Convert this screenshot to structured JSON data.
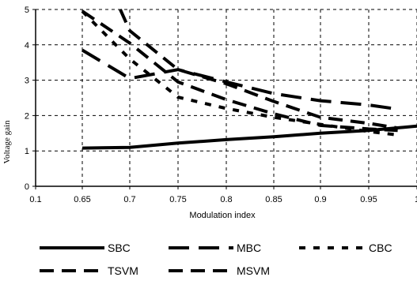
{
  "chart_data": {
    "type": "line",
    "xlabel": "Modulation index",
    "ylabel": "Voltage gain",
    "xlim": [
      0.1,
      1
    ],
    "ylim": [
      0,
      5
    ],
    "x_ticks": [
      "0.1",
      "0.65",
      "0.7",
      "0.75",
      "0.8",
      "0.85",
      "0.9",
      "0.95",
      "1"
    ],
    "y_ticks": [
      "0",
      "1",
      "2",
      "3",
      "4",
      "5"
    ],
    "grid": true,
    "legend_position": "bottom",
    "series": [
      {
        "name": "SBC",
        "style": "solid",
        "color": "#000000",
        "points": [
          [
            0.65,
            1.08
          ],
          [
            0.7,
            1.1
          ],
          [
            0.75,
            1.22
          ],
          [
            0.8,
            1.32
          ],
          [
            0.85,
            1.4
          ],
          [
            0.9,
            1.5
          ],
          [
            0.95,
            1.58
          ],
          [
            1.0,
            1.7
          ]
        ]
      },
      {
        "name": "MBC",
        "style": "long-dash",
        "color": "#000000",
        "points": [
          [
            0.65,
            3.85
          ],
          [
            0.7,
            3.05
          ],
          [
            0.75,
            3.3
          ],
          [
            0.8,
            2.95
          ],
          [
            0.85,
            2.62
          ],
          [
            0.9,
            2.42
          ],
          [
            0.95,
            2.3
          ],
          [
            0.98,
            2.18
          ]
        ]
      },
      {
        "name": "CBC",
        "style": "short-dash",
        "color": "#000000",
        "points": [
          [
            0.65,
            4.95
          ],
          [
            0.7,
            3.6
          ],
          [
            0.75,
            2.52
          ],
          [
            0.8,
            2.2
          ],
          [
            0.85,
            1.95
          ],
          [
            0.9,
            1.75
          ],
          [
            0.95,
            1.55
          ],
          [
            0.98,
            1.45
          ]
        ]
      },
      {
        "name": "TSVM",
        "style": "dash",
        "color": "#000000",
        "points": [
          [
            0.65,
            4.95
          ],
          [
            0.7,
            4.05
          ],
          [
            0.75,
            2.95
          ],
          [
            0.8,
            2.45
          ],
          [
            0.85,
            2.05
          ],
          [
            0.9,
            1.72
          ],
          [
            0.95,
            1.62
          ],
          [
            0.98,
            1.58
          ]
        ]
      },
      {
        "name": "MSVM",
        "style": "dash",
        "color": "#000000",
        "points": [
          [
            0.69,
            5.0
          ],
          [
            0.7,
            4.4
          ],
          [
            0.75,
            3.3
          ],
          [
            0.8,
            2.9
          ],
          [
            0.85,
            2.4
          ],
          [
            0.9,
            1.95
          ],
          [
            0.95,
            1.78
          ],
          [
            0.98,
            1.65
          ]
        ]
      }
    ]
  }
}
